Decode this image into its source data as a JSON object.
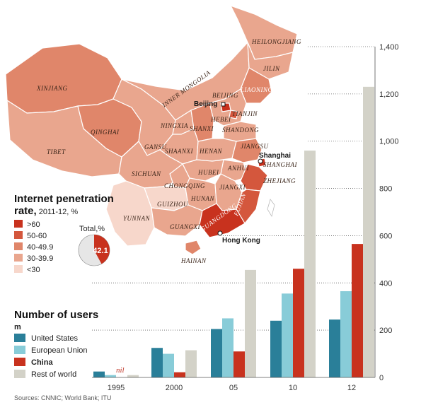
{
  "map": {
    "title": "Internet penetration",
    "subtitle_bold": "rate,",
    "subtitle_rest": " 2011-12, %",
    "legend": [
      {
        "label": ">60",
        "color": "#c8321e"
      },
      {
        "label": "50-60",
        "color": "#d4573d"
      },
      {
        "label": "40-49.9",
        "color": "#e0866a"
      },
      {
        "label": "30-39.9",
        "color": "#e9a68e"
      },
      {
        "label": "<30",
        "color": "#f7d7cb"
      }
    ],
    "total_label": "Total,%",
    "total_value": "42.1",
    "total_fraction": 0.421,
    "pie_colors": {
      "filled": "#c8321e",
      "rest": "#e6e6e6"
    },
    "provinces": [
      {
        "name": "XINJIANG",
        "band": "40-49.9"
      },
      {
        "name": "TIBET",
        "band": "30-39.9"
      },
      {
        "name": "QINGHAI",
        "band": "40-49.9"
      },
      {
        "name": "GANSU",
        "band": "30-39.9"
      },
      {
        "name": "INNER MONGOLIA",
        "band": "30-39.9"
      },
      {
        "name": "HEILONGJIANG",
        "band": "30-39.9"
      },
      {
        "name": "JILIN",
        "band": "30-39.9"
      },
      {
        "name": "LIAONING",
        "band": "40-49.9"
      },
      {
        "name": "BEIJING",
        "band": ">60"
      },
      {
        "name": "TIANJIN",
        "band": "50-60"
      },
      {
        "name": "HEBEI",
        "band": "30-39.9"
      },
      {
        "name": "NINGXIA",
        "band": "30-39.9"
      },
      {
        "name": "SHANXI",
        "band": "40-49.9"
      },
      {
        "name": "SHANDONG",
        "band": "30-39.9"
      },
      {
        "name": "SHAANXI",
        "band": "30-39.9"
      },
      {
        "name": "HENAN",
        "band": "30-39.9"
      },
      {
        "name": "JIANGSU",
        "band": "40-49.9"
      },
      {
        "name": "SHANGHAI",
        "band": ">60"
      },
      {
        "name": "ANHUI",
        "band": "30-39.9"
      },
      {
        "name": "ZHEJIANG",
        "band": "50-60"
      },
      {
        "name": "SICHUAN",
        "band": "30-39.9"
      },
      {
        "name": "HUBEI",
        "band": "30-39.9"
      },
      {
        "name": "CHONGQING",
        "band": "30-39.9"
      },
      {
        "name": "JIANGXI",
        "band": "30-39.9"
      },
      {
        "name": "HUNAN",
        "band": "30-39.9"
      },
      {
        "name": "FUJIAN",
        "band": "50-60"
      },
      {
        "name": "GUIZHOU",
        "band": "<30"
      },
      {
        "name": "YUNNAN",
        "band": "<30"
      },
      {
        "name": "GUANGXI",
        "band": "30-39.9"
      },
      {
        "name": "GUANGDONG",
        "band": ">60"
      },
      {
        "name": "HAINAN",
        "band": "40-49.9"
      }
    ],
    "cities": [
      "Beijing",
      "Shanghai",
      "Hong Kong"
    ]
  },
  "chart_data": {
    "type": "bar",
    "title": "Number of users",
    "unit": "m",
    "categories": [
      "1995",
      "2000",
      "05",
      "10",
      "12"
    ],
    "ylim": [
      0,
      1400
    ],
    "yticks": [
      0,
      200,
      400,
      600,
      800,
      "1,000",
      "1,200",
      "1,400"
    ],
    "series": [
      {
        "name": "United States",
        "color": "#2a7f99",
        "values": [
          25,
          125,
          205,
          240,
          245
        ]
      },
      {
        "name": "European Union",
        "color": "#88ccd8",
        "values": [
          10,
          100,
          250,
          355,
          365
        ]
      },
      {
        "name": "China",
        "color": "#c8321e",
        "values": [
          0,
          22,
          110,
          460,
          565
        ]
      },
      {
        "name": "Rest of world",
        "color": "#d3d2c8",
        "values": [
          10,
          115,
          455,
          960,
          1230
        ]
      }
    ],
    "annotation": "nil",
    "grid": "horizontal dotted"
  },
  "source": "Sources: CNNIC; World Bank; ITU"
}
